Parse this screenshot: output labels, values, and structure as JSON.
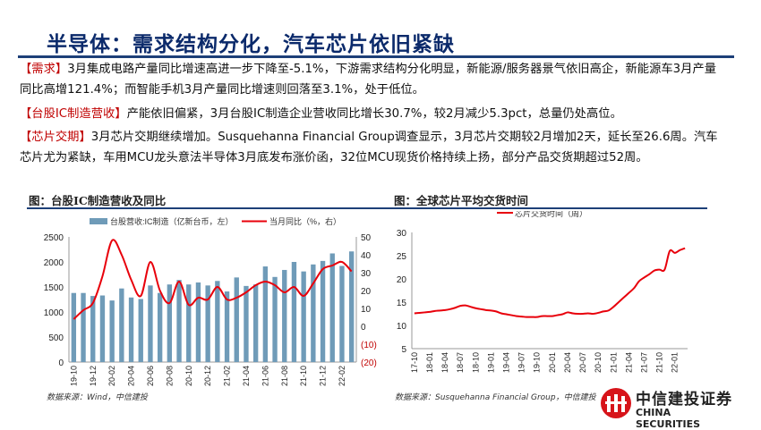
{
  "title": "半导体：需求结构分化，汽车芯片依旧紧缺",
  "paragraphs": [
    {
      "tag": "【需求】",
      "text": "3月集成电路产量同比增速高进一步下降至-5.1%，下游需求结构分化明显，新能源/服务器景气依旧高企，新能源车3月产量同比高增121.4%；而智能手机3月产量同比增速则回落至3.1%，处于低位。"
    },
    {
      "tag": "【台股IC制造营收】",
      "text": "产能依旧偏紧，3月台股IC制造企业营收同比增长30.7%，较2月减少5.3pct，总量仍处高位。"
    },
    {
      "tag": "【芯片交期】",
      "text": "3月芯片交期继续增加。Susquehanna Financial Group调查显示，3月芯片交期较2月增加2天，延长至26.6周。汽车芯片尤为紧缺，车用MCU龙头意法半导体3月底发布涨价函，32位MCU现货价格持续上扬，部分产品交货期超过52周。"
    }
  ],
  "colors": {
    "bar": "#6f9bb8",
    "line": "#e8000b",
    "neg": "#c00000",
    "title": "#0b2a6b"
  },
  "chart_data": [
    {
      "type": "bar+line",
      "title": "图：台股IC制造营收及同比",
      "source": "数据来源：Wind，中信建投",
      "categories": [
        "19-10",
        "19-11",
        "19-12",
        "20-01",
        "20-02",
        "20-03",
        "20-04",
        "20-05",
        "20-06",
        "20-07",
        "20-08",
        "20-09",
        "20-10",
        "20-11",
        "20-12",
        "21-01",
        "21-02",
        "21-03",
        "21-04",
        "21-05",
        "21-06",
        "21-07",
        "21-08",
        "21-09",
        "21-10",
        "21-11",
        "21-12",
        "22-01",
        "22-02",
        "22-03"
      ],
      "x_tick_labels": [
        "19-10",
        "19-12",
        "20-02",
        "20-04",
        "20-06",
        "20-08",
        "20-10",
        "20-12",
        "21-02",
        "21-04",
        "21-06",
        "21-08",
        "21-10",
        "21-12",
        "22-02"
      ],
      "series": [
        {
          "name": "台股营收:IC制造（亿新台币，左）",
          "axis": "left",
          "type": "bar",
          "values": [
            1380,
            1380,
            1320,
            1330,
            1230,
            1470,
            1290,
            1260,
            1530,
            1380,
            1550,
            1640,
            1550,
            1590,
            1530,
            1620,
            1410,
            1690,
            1520,
            1550,
            1910,
            1700,
            1840,
            2000,
            1810,
            1950,
            2020,
            2170,
            1920,
            2210
          ]
        },
        {
          "name": "当月同比（%，右）",
          "axis": "right",
          "type": "line",
          "values": [
            4,
            9,
            13,
            28,
            48,
            40,
            26,
            17,
            36,
            20,
            13,
            25,
            12,
            16,
            15,
            22,
            15,
            16,
            19,
            23,
            25,
            23,
            19,
            22,
            17,
            24,
            32,
            34,
            36,
            30.7
          ]
        }
      ],
      "ylim_left": [
        0,
        2500
      ],
      "yticks_left": [
        "2500",
        "2000",
        "1500",
        "1000",
        "500",
        "0"
      ],
      "ylim_right": [
        -20,
        50
      ],
      "yticks_right": [
        "50",
        "40",
        "30",
        "20",
        "10",
        "0",
        "(10)",
        "(20)"
      ]
    },
    {
      "type": "line",
      "title": "图：全球芯片平均交货时间",
      "source": "数据来源：Susquehanna Financial Group，中信建投",
      "legend": "芯片交货时间（周）",
      "x_tick_labels": [
        "17-10",
        "18-01",
        "18-04",
        "18-07",
        "18-10",
        "19-01",
        "19-04",
        "19-07",
        "19-10",
        "20-01",
        "20-04",
        "20-07",
        "20-10",
        "21-01",
        "21-04",
        "21-07",
        "21-10",
        "22-01"
      ],
      "values": [
        12.6,
        12.7,
        12.8,
        12.9,
        13.1,
        13.2,
        13.3,
        13.5,
        13.8,
        14.2,
        14.3,
        14.0,
        13.7,
        13.5,
        13.3,
        13.2,
        13.0,
        12.6,
        12.4,
        12.2,
        12.0,
        11.9,
        11.8,
        11.8,
        11.8,
        12.0,
        12.0,
        12.0,
        12.2,
        12.4,
        12.8,
        12.6,
        12.5,
        12.5,
        12.6,
        12.5,
        12.7,
        13.0,
        13.2,
        14.0,
        15.0,
        16.0,
        17.0,
        18.0,
        19.5,
        20.3,
        21.0,
        21.8,
        22.0,
        22.0,
        26.0,
        25.6,
        26.2,
        26.6
      ],
      "ylim": [
        5,
        30
      ],
      "yticks": [
        "30",
        "25",
        "20",
        "15",
        "10",
        "5"
      ]
    }
  ],
  "logo": {
    "name": "中信建投证券",
    "en": "CHINA SECURITIES"
  }
}
